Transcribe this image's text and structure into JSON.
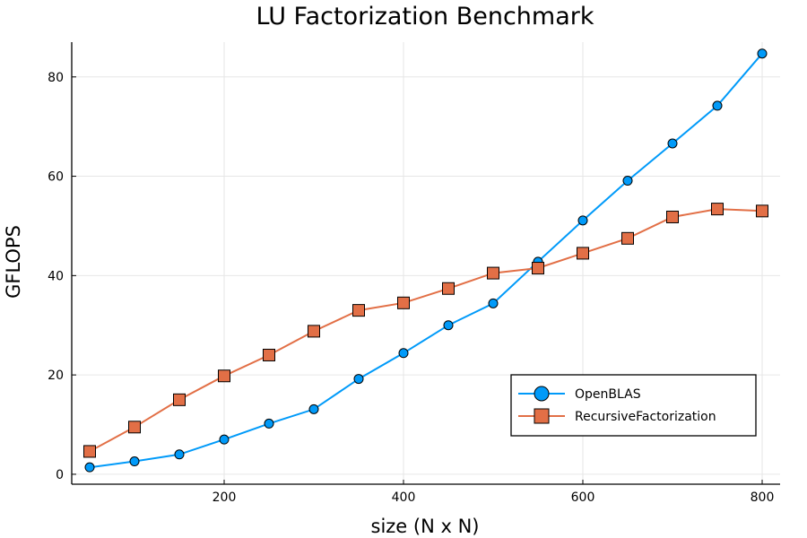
{
  "chart_data": {
    "type": "line",
    "title": "LU Factorization Benchmark",
    "xlabel": "size (N x N)",
    "ylabel": "GFLOPS",
    "xlim": [
      30,
      820
    ],
    "ylim": [
      -2,
      87
    ],
    "xticks": [
      200,
      400,
      600,
      800
    ],
    "yticks": [
      0,
      20,
      40,
      60,
      80
    ],
    "grid": true,
    "legend_position": "bottom-right",
    "x": [
      50,
      100,
      150,
      200,
      250,
      300,
      350,
      400,
      450,
      500,
      550,
      600,
      650,
      700,
      750,
      800
    ],
    "series": [
      {
        "name": "OpenBLAS",
        "color": "#009AF9",
        "marker": "circle",
        "values": [
          1.4,
          2.6,
          4.0,
          7.0,
          10.2,
          13.1,
          19.2,
          24.4,
          30.0,
          34.4,
          42.8,
          51.1,
          59.1,
          66.6,
          74.2,
          84.7
        ]
      },
      {
        "name": "RecursiveFactorization",
        "color": "#E26F46",
        "marker": "square",
        "values": [
          4.6,
          9.5,
          15.0,
          19.8,
          24.0,
          28.8,
          33.0,
          34.5,
          37.4,
          40.5,
          41.5,
          44.5,
          47.5,
          51.8,
          53.4,
          53.0
        ]
      }
    ]
  }
}
